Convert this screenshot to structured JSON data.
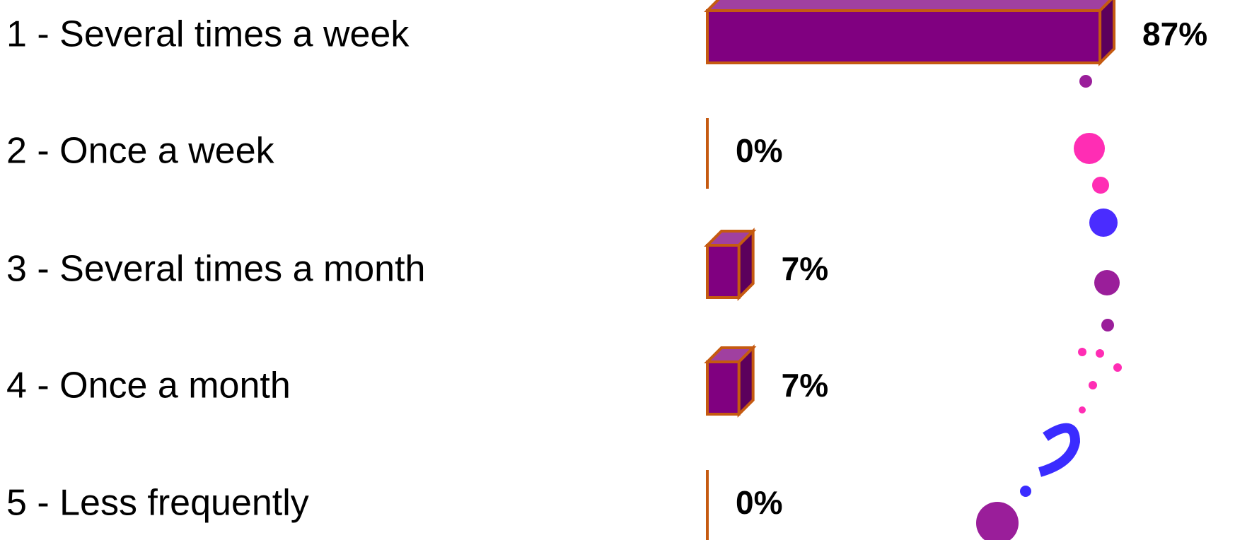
{
  "chart_data": {
    "type": "bar",
    "categories": [
      "1 - Several times a week",
      "2 - Once a week",
      "3 - Several times a month",
      "4 - Once a month",
      "5 - Less frequently"
    ],
    "values": [
      87,
      0,
      7,
      7,
      0
    ],
    "value_labels": [
      "87%",
      "0%",
      "7%",
      "7%",
      "0%"
    ],
    "color": "#800080",
    "edge_color": "#c55a11"
  }
}
